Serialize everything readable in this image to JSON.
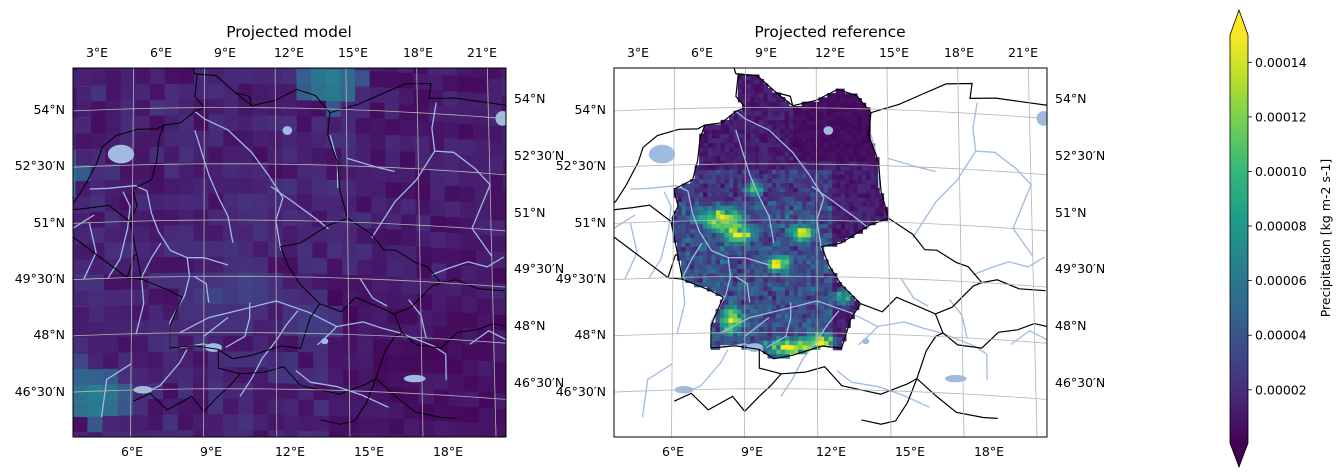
{
  "chart_data": [
    {
      "type": "heatmap",
      "title": "Projected model",
      "projection": "conic",
      "lon_top_ticks": [
        "3°E",
        "6°E",
        "9°E",
        "12°E",
        "15°E",
        "18°E",
        "21°E"
      ],
      "lon_bottom_ticks": [
        "6°E",
        "9°E",
        "12°E",
        "15°E",
        "18°E"
      ],
      "lat_left_ticks": [
        "54°N",
        "52°30′N",
        "51°N",
        "49°30′N",
        "48°N",
        "46°30′N"
      ],
      "lat_right_ticks": [
        "54°N",
        "52°30′N",
        "51°N",
        "49°30′N",
        "48°N",
        "46°30′N"
      ],
      "lon_range": [
        1.5,
        22.0
      ],
      "lat_range": [
        45.5,
        55.5
      ],
      "field": "coarse gridded precipitation covering the whole domain; mostly 0.00001–0.00004 kg m-2 s-1, highest cells ~0.00008 near 2°E 52°N and 4°E 46°N, and ~0.00007 near 14°E 54.6°N",
      "colormap": "viridis",
      "grid": true
    },
    {
      "type": "heatmap",
      "title": "Projected reference",
      "projection": "conic",
      "lon_top_ticks": [
        "3°E",
        "6°E",
        "9°E",
        "12°E",
        "15°E",
        "18°E",
        "21°E"
      ],
      "lon_bottom_ticks": [
        "6°E",
        "9°E",
        "12°E",
        "15°E",
        "18°E"
      ],
      "lat_left_ticks": [
        "54°N",
        "52°30′N",
        "51°N",
        "49°30′N",
        "48°N",
        "46°30′N"
      ],
      "lat_right_ticks": [
        "54°N",
        "52°30′N",
        "51°N",
        "49°30′N",
        "48°N",
        "46°30′N"
      ],
      "lon_range": [
        1.5,
        22.0
      ],
      "lat_range": [
        45.5,
        55.5
      ],
      "field": "high-resolution precipitation over Germany only; maxima ≥0.00014 kg m-2 s-1 along western uplands (~8°E 51°N) and the Alpine foothills (~10–12°E 47.5°N), low values in the north-east",
      "colormap": "viridis",
      "grid": true
    }
  ],
  "colorbar": {
    "label": "Precipitation [kg m-2 s-1]",
    "ticks": [
      "0.00002",
      "0.00004",
      "0.00006",
      "0.00008",
      "0.00010",
      "0.00012",
      "0.00014"
    ],
    "tick_values": [
      2e-05,
      4e-05,
      6e-05,
      8e-05,
      0.0001,
      0.00012,
      0.00014
    ],
    "range": [
      5e-07,
      0.00015
    ],
    "extend": "both",
    "colormap": "viridis"
  },
  "colors": {
    "viridis": [
      "#440154",
      "#482878",
      "#3e4989",
      "#31688e",
      "#26828e",
      "#1f9e89",
      "#35b779",
      "#6ece58",
      "#b5de2b",
      "#fde725"
    ],
    "river": "#9fbbe0",
    "border": "#000000",
    "grid": "#b4b4b4"
  }
}
